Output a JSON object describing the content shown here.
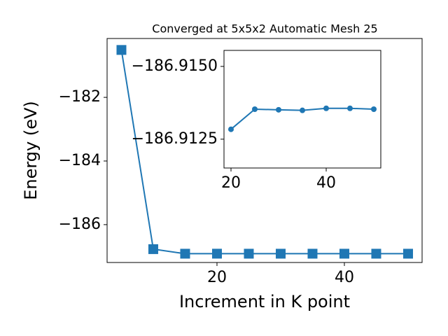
{
  "chart_data": [
    {
      "type": "line",
      "title": "Converged at 5x5x2 Automatic Mesh 25",
      "xlabel": "Increment in K point",
      "ylabel": "Energy (eV)",
      "marker": "square",
      "x": [
        5,
        10,
        15,
        20,
        25,
        30,
        35,
        40,
        45,
        50
      ],
      "series": [
        {
          "color": "#1f77b4",
          "values": [
            -180.51,
            -186.77,
            -186.9135,
            -186.9128,
            -186.9135,
            -186.9135,
            -186.9135,
            -186.9136,
            -186.9136,
            -186.9135
          ]
        }
      ],
      "xlim": [
        2.75,
        52.2
      ],
      "ylim": [
        -187.19,
        -180.15
      ],
      "xticks": [
        20,
        40
      ],
      "yticks": [
        {
          "value": -186,
          "label": "−186"
        },
        {
          "value": -184,
          "label": "−184"
        },
        {
          "value": -182,
          "label": "−182"
        }
      ]
    },
    {
      "type": "line",
      "marker": "circle",
      "x": [
        20,
        25,
        30,
        35,
        40,
        45,
        50
      ],
      "series": [
        {
          "color": "#1f77b4",
          "values": [
            -186.91284,
            -186.91353,
            -186.91351,
            -186.91349,
            -186.91356,
            -186.91356,
            -186.91353
          ]
        }
      ],
      "xlim": [
        18.53,
        51.47
      ],
      "ylim": [
        -186.91151,
        -186.91555
      ],
      "xticks": [
        20,
        40
      ],
      "yticks": [
        {
          "value": -186.9125,
          "label": "−186.9125"
        },
        {
          "value": -186.915,
          "label": "−186.9150"
        }
      ]
    }
  ]
}
